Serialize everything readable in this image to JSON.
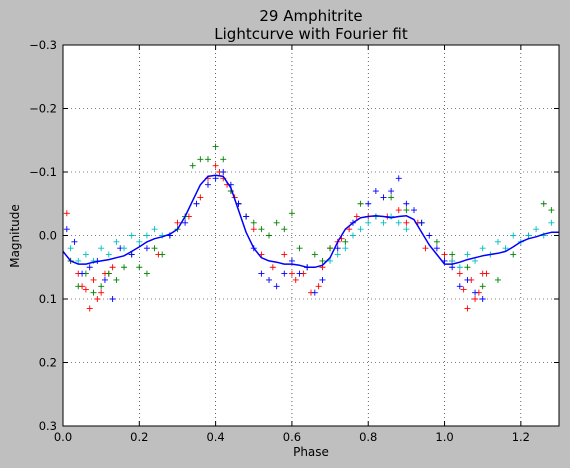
{
  "chart_data": {
    "type": "scatter",
    "title": "29 Amphitrite",
    "subtitle": "Lightcurve with Fourier fit",
    "xlabel": "Phase",
    "ylabel": "Magnitude",
    "xlim": [
      0.0,
      1.3
    ],
    "ylim": [
      0.3,
      -0.3
    ],
    "y_inverted": true,
    "grid": true,
    "grid_style": "dotted",
    "marker": "+",
    "xticks": [
      0.0,
      0.2,
      0.4,
      0.6,
      0.8,
      1.0,
      1.2
    ],
    "xtick_labels": [
      "0.0",
      "0.2",
      "0.4",
      "0.6",
      "0.8",
      "1.0",
      "1.2"
    ],
    "yticks": [
      -0.3,
      -0.2,
      -0.1,
      0.0,
      0.1,
      0.2,
      0.3
    ],
    "ytick_labels": [
      "−0.3",
      "−0.2",
      "−0.1",
      "0.0",
      "0.1",
      "0.2",
      "0.3"
    ],
    "series": [
      {
        "color": "#ff0000",
        "x": [
          0.01,
          0.02,
          0.04,
          0.05,
          0.06,
          0.07,
          0.08,
          0.09,
          0.1,
          0.11,
          0.12,
          0.13,
          0.25,
          0.3,
          0.33,
          0.36,
          0.38,
          0.4,
          0.41,
          0.42,
          0.43,
          0.44,
          0.45,
          0.46,
          0.48,
          0.5,
          0.52,
          0.55,
          0.58,
          0.6,
          0.61,
          0.63,
          0.65,
          0.67,
          0.68,
          0.7,
          0.72,
          0.73,
          0.75,
          0.77,
          0.8,
          0.82,
          0.85,
          0.88,
          0.9,
          0.93,
          0.95,
          1.0,
          1.02,
          1.04,
          1.05,
          1.06,
          1.07,
          1.08,
          1.09,
          1.1,
          1.11
        ],
        "y": [
          -0.035,
          0.04,
          0.06,
          0.08,
          0.085,
          0.115,
          0.07,
          0.1,
          0.09,
          0.06,
          0.06,
          0.05,
          0.03,
          -0.02,
          -0.03,
          -0.06,
          -0.09,
          -0.11,
          -0.1,
          -0.09,
          -0.08,
          -0.07,
          -0.06,
          -0.05,
          -0.03,
          -0.01,
          0.03,
          0.05,
          0.03,
          0.06,
          0.07,
          0.06,
          0.09,
          0.08,
          0.05,
          0.02,
          0.01,
          0.005,
          -0.01,
          -0.03,
          -0.03,
          -0.03,
          -0.03,
          -0.04,
          -0.02,
          -0.02,
          0.02,
          0.03,
          0.04,
          0.06,
          0.085,
          0.115,
          0.07,
          0.1,
          0.09,
          0.06,
          0.06
        ]
      },
      {
        "color": "#008000",
        "x": [
          0.02,
          0.04,
          0.06,
          0.08,
          0.1,
          0.12,
          0.14,
          0.16,
          0.18,
          0.2,
          0.22,
          0.24,
          0.26,
          0.28,
          0.3,
          0.32,
          0.34,
          0.36,
          0.38,
          0.4,
          0.42,
          0.44,
          0.46,
          0.48,
          0.5,
          0.52,
          0.54,
          0.56,
          0.58,
          0.6,
          0.62,
          0.64,
          0.66,
          0.68,
          0.7,
          0.74,
          0.78,
          0.82,
          0.86,
          0.9,
          0.94,
          0.98,
          1.02,
          1.06,
          1.1,
          1.14,
          1.18,
          1.22,
          1.26,
          1.28
        ],
        "y": [
          0.04,
          0.08,
          0.06,
          0.09,
          0.08,
          0.06,
          0.07,
          0.05,
          0.03,
          0.05,
          0.06,
          0.02,
          0.03,
          0.0,
          -0.01,
          -0.03,
          -0.11,
          -0.12,
          -0.12,
          -0.14,
          -0.12,
          -0.07,
          -0.05,
          -0.03,
          -0.02,
          -0.01,
          0.0,
          -0.02,
          -0.01,
          -0.035,
          0.02,
          0.05,
          0.03,
          0.04,
          0.02,
          0.01,
          -0.05,
          -0.03,
          -0.06,
          -0.04,
          -0.02,
          0.01,
          0.03,
          0.05,
          0.08,
          0.07,
          0.03,
          0.0,
          -0.05,
          -0.04
        ]
      },
      {
        "color": "#0000ff",
        "x": [
          0.01,
          0.03,
          0.05,
          0.07,
          0.09,
          0.11,
          0.13,
          0.15,
          0.18,
          0.22,
          0.28,
          0.32,
          0.35,
          0.38,
          0.4,
          0.42,
          0.44,
          0.46,
          0.48,
          0.5,
          0.52,
          0.54,
          0.56,
          0.58,
          0.6,
          0.62,
          0.64,
          0.66,
          0.68,
          0.72,
          0.76,
          0.8,
          0.82,
          0.84,
          0.86,
          0.88,
          0.9,
          0.92,
          0.94,
          0.96,
          0.98,
          1.0,
          1.02,
          1.04,
          1.06,
          1.08,
          1.1
        ],
        "y": [
          -0.01,
          0.01,
          0.06,
          0.05,
          0.04,
          0.07,
          0.1,
          0.02,
          0.03,
          0.02,
          0.0,
          -0.02,
          -0.05,
          -0.08,
          -0.09,
          -0.1,
          -0.08,
          -0.05,
          -0.03,
          0.02,
          0.06,
          0.07,
          0.08,
          0.06,
          0.04,
          0.06,
          0.05,
          0.09,
          0.07,
          0.02,
          -0.02,
          -0.05,
          -0.07,
          -0.06,
          -0.07,
          -0.09,
          -0.05,
          -0.04,
          -0.02,
          0.0,
          0.02,
          0.04,
          0.05,
          0.08,
          0.07,
          0.09,
          0.1
        ]
      },
      {
        "color": "#00bfbf",
        "x": [
          0.02,
          0.04,
          0.06,
          0.08,
          0.1,
          0.12,
          0.14,
          0.16,
          0.18,
          0.2,
          0.22,
          0.24,
          0.26,
          0.7,
          0.72,
          0.74,
          0.76,
          0.78,
          0.8,
          0.82,
          0.84,
          0.86,
          0.88,
          0.9,
          1.02,
          1.04,
          1.06,
          1.08,
          1.1,
          1.12,
          1.14,
          1.16,
          1.18,
          1.2,
          1.22,
          1.24,
          1.26,
          1.28
        ],
        "y": [
          0.02,
          0.04,
          0.03,
          0.04,
          0.02,
          0.03,
          0.01,
          0.02,
          0.0,
          0.01,
          0.0,
          -0.01,
          0.0,
          0.04,
          0.03,
          0.02,
          0.0,
          -0.01,
          -0.02,
          -0.03,
          -0.02,
          -0.03,
          -0.02,
          -0.01,
          0.04,
          0.05,
          0.03,
          0.04,
          0.02,
          0.03,
          0.01,
          0.02,
          0.0,
          0.01,
          0.0,
          -0.01,
          0.0,
          -0.02
        ]
      }
    ],
    "fit": {
      "color": "#0000ff",
      "x": [
        0.0,
        0.02,
        0.04,
        0.06,
        0.08,
        0.1,
        0.12,
        0.14,
        0.16,
        0.18,
        0.2,
        0.22,
        0.24,
        0.26,
        0.28,
        0.3,
        0.32,
        0.34,
        0.36,
        0.38,
        0.4,
        0.42,
        0.44,
        0.46,
        0.48,
        0.5,
        0.52,
        0.54,
        0.56,
        0.58,
        0.6,
        0.62,
        0.64,
        0.66,
        0.68,
        0.7,
        0.72,
        0.74,
        0.76,
        0.78,
        0.8,
        0.82,
        0.84,
        0.86,
        0.88,
        0.9,
        0.92,
        0.94,
        0.96,
        0.98,
        1.0,
        1.02,
        1.04,
        1.06,
        1.08,
        1.1,
        1.12,
        1.14,
        1.16,
        1.18,
        1.2,
        1.22,
        1.24,
        1.26,
        1.28,
        1.3
      ],
      "y": [
        0.025,
        0.04,
        0.045,
        0.045,
        0.042,
        0.04,
        0.038,
        0.035,
        0.032,
        0.025,
        0.018,
        0.01,
        0.005,
        0.002,
        -0.002,
        -0.01,
        -0.03,
        -0.055,
        -0.08,
        -0.093,
        -0.095,
        -0.093,
        -0.075,
        -0.04,
        -0.005,
        0.02,
        0.035,
        0.04,
        0.042,
        0.045,
        0.045,
        0.047,
        0.05,
        0.05,
        0.047,
        0.035,
        0.01,
        -0.01,
        -0.02,
        -0.028,
        -0.03,
        -0.031,
        -0.03,
        -0.028,
        -0.03,
        -0.031,
        -0.025,
        -0.005,
        0.015,
        0.03,
        0.045,
        0.045,
        0.042,
        0.038,
        0.035,
        0.032,
        0.03,
        0.028,
        0.025,
        0.018,
        0.01,
        0.005,
        0.002,
        -0.002,
        -0.005,
        -0.005
      ]
    }
  }
}
